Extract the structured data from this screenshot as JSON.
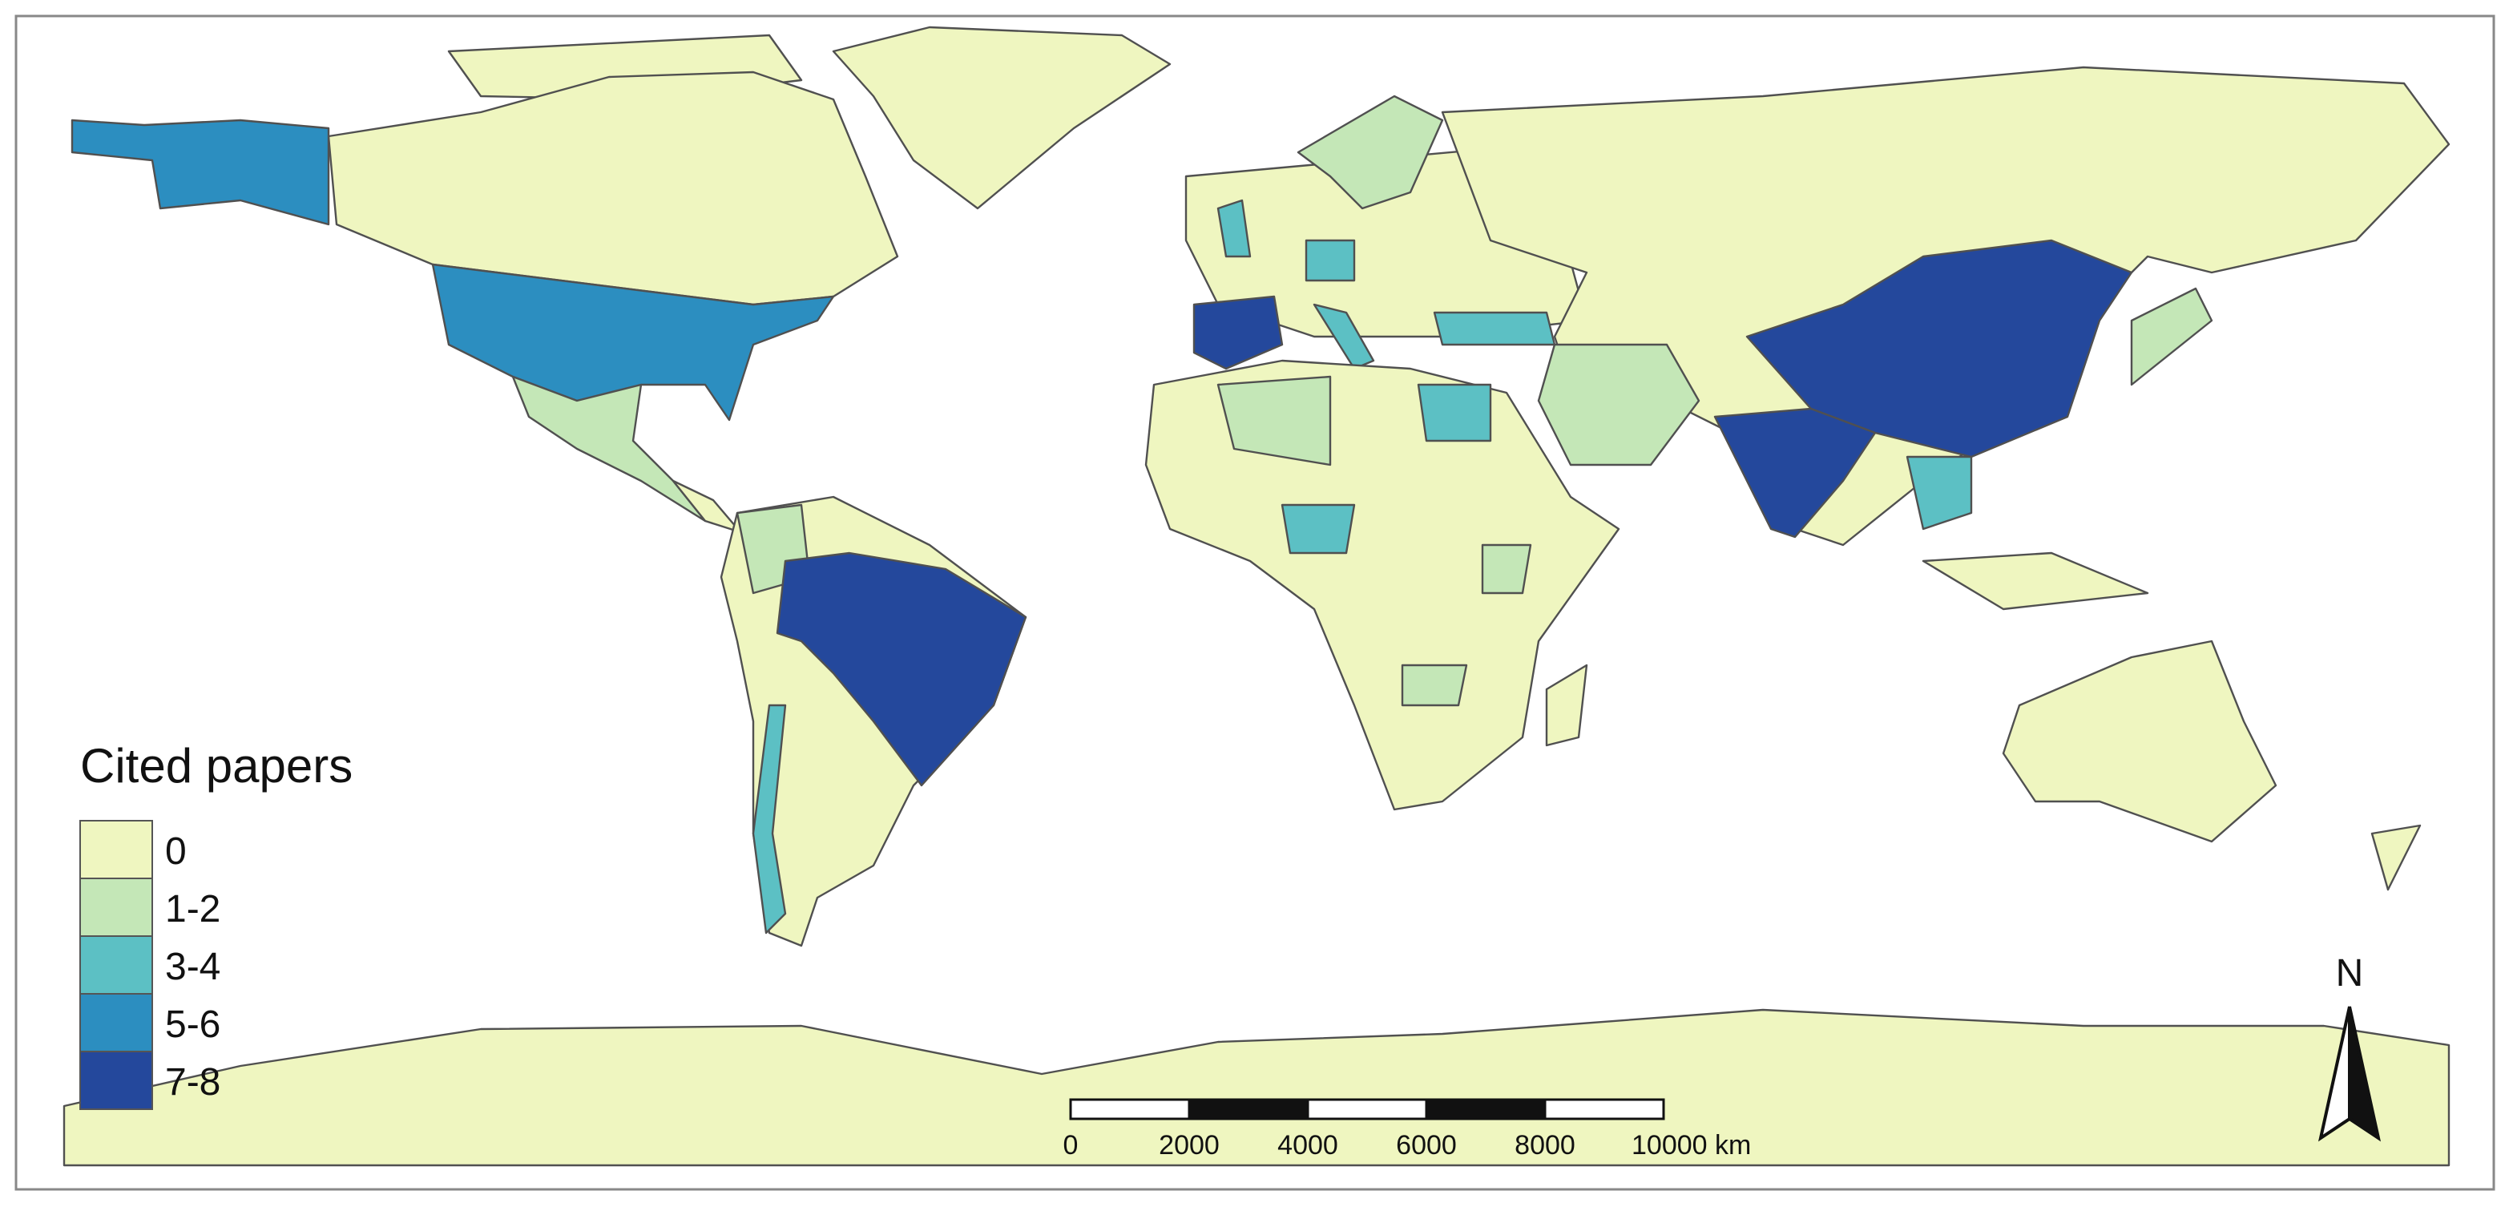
{
  "legend": {
    "title": "Cited papers",
    "items": [
      {
        "label": "0",
        "color": "#eff6c0"
      },
      {
        "label": "1-2",
        "color": "#c4e7b7"
      },
      {
        "label": "3-4",
        "color": "#5cc0c4"
      },
      {
        "label": "5-6",
        "color": "#2c8ec0"
      },
      {
        "label": "7-8",
        "color": "#24489c"
      }
    ]
  },
  "scale_bar": {
    "labels": [
      "0",
      "2000",
      "4000",
      "6000",
      "8000",
      "10000 km"
    ]
  },
  "north_arrow": "N"
}
